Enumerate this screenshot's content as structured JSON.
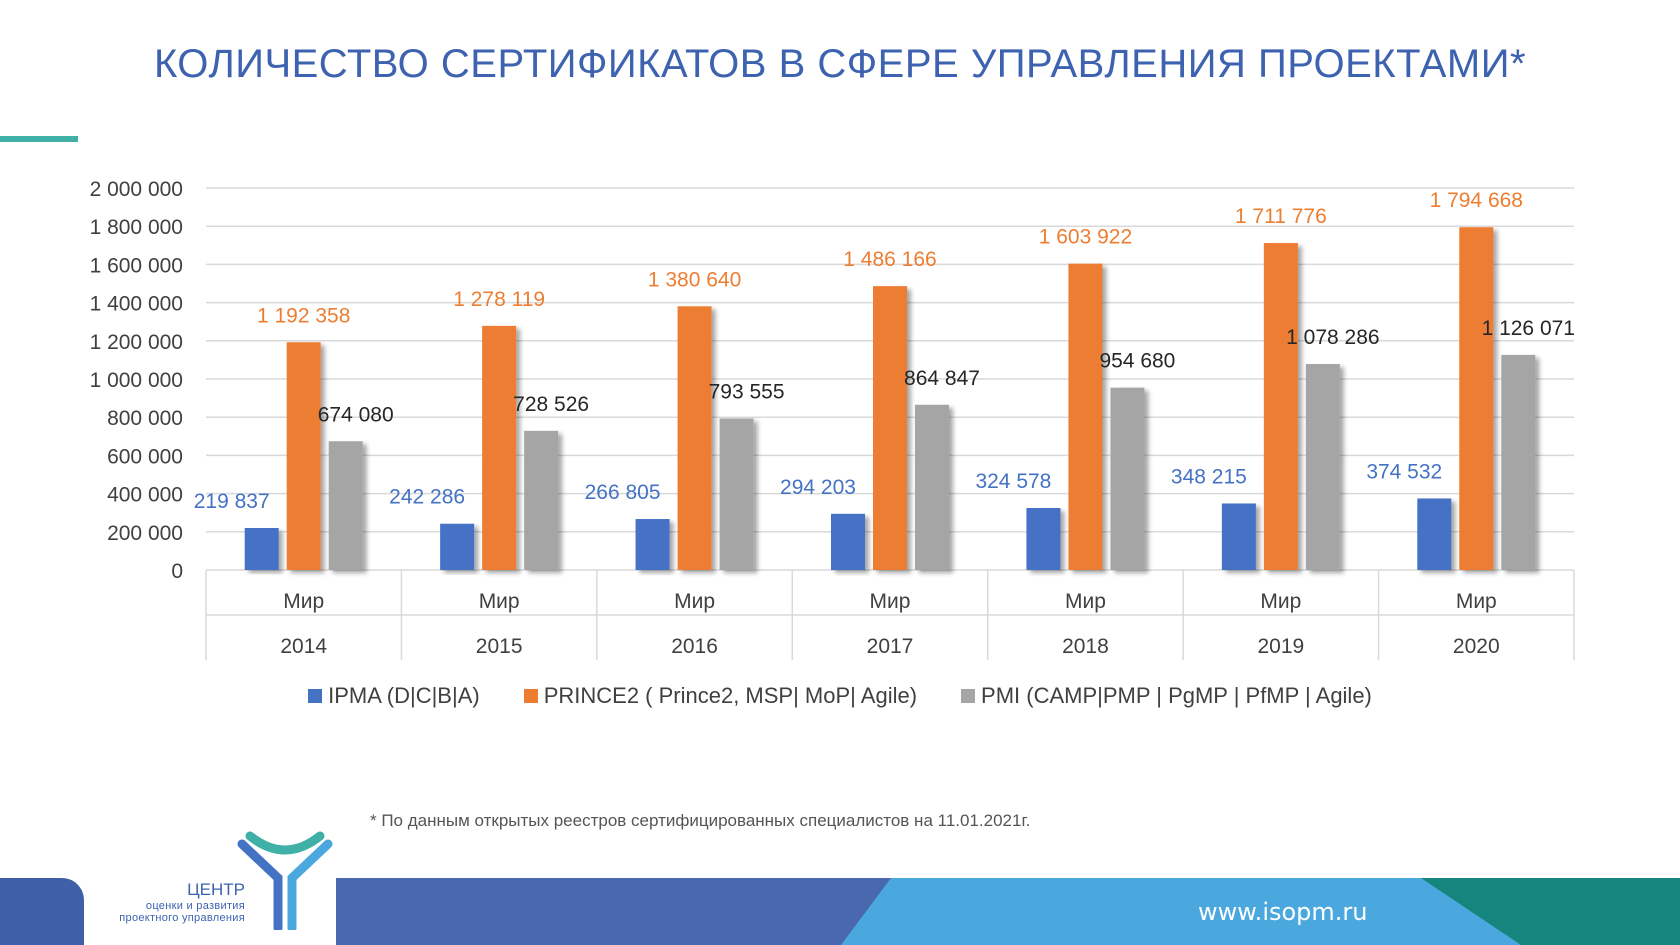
{
  "title": "КОЛИЧЕСТВО СЕРТИФИКАТОВ В СФЕРЕ УПРАВЛЕНИЯ ПРОЕКТАМИ*",
  "footnote": "* По данным открытых реестров сертифицированных специалистов на 11.01.2021г.",
  "footer": {
    "url": "www.isopm.ru",
    "logo_title": "ЦЕНТР",
    "logo_line1": "оценки и развития",
    "logo_line2": "проектного управления"
  },
  "colors": {
    "title": "#3d62b0",
    "accent": "#3fb0a5",
    "ipma": "#4472c4",
    "prince2": "#ed7d31",
    "pmi": "#a5a5a5"
  },
  "chart_data": {
    "type": "bar",
    "categories": [
      "2014",
      "2015",
      "2016",
      "2017",
      "2018",
      "2019",
      "2020"
    ],
    "category_sublabel": "Мир",
    "ylim": [
      0,
      2000000
    ],
    "yticks": [
      "0",
      "200 000",
      "400 000",
      "600 000",
      "800 000",
      "1 000 000",
      "1 200 000",
      "1 400 000",
      "1 600 000",
      "1 800 000",
      "2 000 000"
    ],
    "grid": true,
    "legend_position": "bottom",
    "series": [
      {
        "name": "IPMA (D|C|B|A)",
        "color": "#4472c4",
        "values": [
          219837,
          242286,
          266805,
          294203,
          324578,
          348215,
          374532
        ],
        "labels": [
          "219 837",
          "242 286",
          "266 805",
          "294 203",
          "324 578",
          "348 215",
          "374 532"
        ]
      },
      {
        "name": "PRINCE2 ( Prince2, MSP| MoP| Agile)",
        "color": "#ed7d31",
        "values": [
          1192358,
          1278119,
          1380640,
          1486166,
          1603922,
          1711776,
          1794668
        ],
        "labels": [
          "1 192 358",
          "1 278 119",
          "1 380 640",
          "1 486 166",
          "1 603 922",
          "1 711 776",
          "1 794 668"
        ]
      },
      {
        "name": "PMI (CAMP|PMP | PgMP | PfMP | Agile)",
        "color": "#a5a5a5",
        "values": [
          674080,
          728526,
          793555,
          864847,
          954680,
          1078286,
          1126071
        ],
        "labels": [
          "674 080",
          "728 526",
          "793 555",
          "864 847",
          "954 680",
          "1 078 286",
          "1 126 071"
        ]
      }
    ]
  }
}
